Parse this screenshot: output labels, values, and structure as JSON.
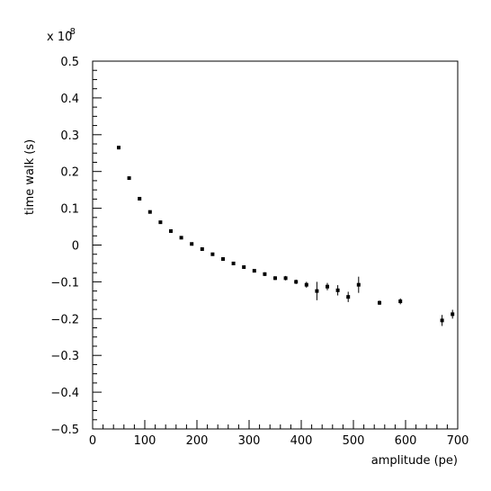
{
  "chart_data": {
    "type": "scatter",
    "title": "",
    "xlabel": "amplitude (pe)",
    "ylabel": "time walk (s)",
    "y_scale_base": "x 10",
    "y_scale_exponent": "-8",
    "xlim": [
      0,
      700
    ],
    "ylim": [
      -0.5,
      0.5
    ],
    "x_ticks": [
      0,
      100,
      200,
      300,
      400,
      500,
      600,
      700
    ],
    "x_tick_labels": [
      "0",
      "100",
      "200",
      "300",
      "400",
      "500",
      "600",
      "700"
    ],
    "y_ticks": [
      -0.5,
      -0.4,
      -0.3,
      -0.2,
      -0.1,
      0,
      0.1,
      0.2,
      0.3,
      0.4,
      0.5
    ],
    "y_tick_labels": [
      "−0.5",
      "−0.4",
      "−0.3",
      "−0.2",
      "−0.1",
      "0",
      "0.1",
      "0.2",
      "0.3",
      "0.4",
      "0.5"
    ],
    "grid": false,
    "marker_color": "#000000",
    "points": [
      {
        "x": 50,
        "y": 0.265,
        "err": 0.005
      },
      {
        "x": 70,
        "y": 0.182,
        "err": 0.004
      },
      {
        "x": 90,
        "y": 0.126,
        "err": 0.004
      },
      {
        "x": 110,
        "y": 0.09,
        "err": 0.004
      },
      {
        "x": 130,
        "y": 0.062,
        "err": 0.004
      },
      {
        "x": 150,
        "y": 0.038,
        "err": 0.004
      },
      {
        "x": 170,
        "y": 0.02,
        "err": 0.004
      },
      {
        "x": 190,
        "y": 0.003,
        "err": 0.004
      },
      {
        "x": 210,
        "y": -0.011,
        "err": 0.004
      },
      {
        "x": 230,
        "y": -0.025,
        "err": 0.004
      },
      {
        "x": 250,
        "y": -0.038,
        "err": 0.004
      },
      {
        "x": 270,
        "y": -0.05,
        "err": 0.004
      },
      {
        "x": 290,
        "y": -0.06,
        "err": 0.004
      },
      {
        "x": 310,
        "y": -0.07,
        "err": 0.004
      },
      {
        "x": 330,
        "y": -0.079,
        "err": 0.005
      },
      {
        "x": 350,
        "y": -0.09,
        "err": 0.005
      },
      {
        "x": 370,
        "y": -0.09,
        "err": 0.006
      },
      {
        "x": 390,
        "y": -0.1,
        "err": 0.006
      },
      {
        "x": 410,
        "y": -0.108,
        "err": 0.008
      },
      {
        "x": 430,
        "y": -0.125,
        "err": 0.025
      },
      {
        "x": 450,
        "y": -0.113,
        "err": 0.01
      },
      {
        "x": 470,
        "y": -0.123,
        "err": 0.014
      },
      {
        "x": 490,
        "y": -0.141,
        "err": 0.014
      },
      {
        "x": 510,
        "y": -0.108,
        "err": 0.022
      },
      {
        "x": 550,
        "y": -0.157,
        "err": 0.006
      },
      {
        "x": 590,
        "y": -0.153,
        "err": 0.008
      },
      {
        "x": 670,
        "y": -0.205,
        "err": 0.015
      },
      {
        "x": 690,
        "y": -0.188,
        "err": 0.012
      }
    ]
  }
}
